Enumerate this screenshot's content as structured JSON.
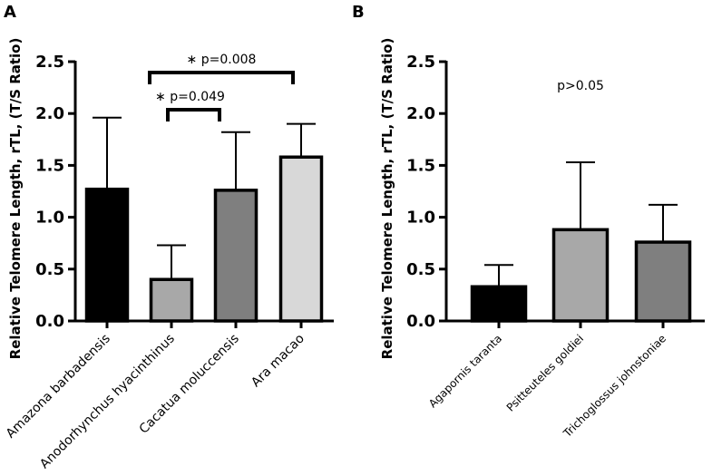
{
  "panels": {
    "a_label": "A",
    "b_label": "B"
  },
  "chart_data": [
    {
      "type": "bar",
      "panel": "A",
      "title": "",
      "xlabel": "",
      "ylabel": "Relative Telomere Length, rTL, (T/S Ratio)",
      "ylim": [
        0,
        2.5
      ],
      "yticks": [
        "0.0",
        "0.5",
        "1.0",
        "1.5",
        "2.0",
        "2.5"
      ],
      "categories": [
        "Amazona barbadensis",
        "Anodorhynchus hyacinthinus",
        "Cacatua moluccensis",
        "Ara macao"
      ],
      "values": [
        1.27,
        0.4,
        1.26,
        1.58
      ],
      "errors": [
        0.69,
        0.33,
        0.56,
        0.32
      ],
      "colors": [
        "#000000",
        "#a8a8a8",
        "#7f7f7f",
        "#d8d8d8"
      ],
      "annotations": [
        {
          "text": "∗ p=0.008",
          "from": 1,
          "to": 3
        },
        {
          "text": "∗ p=0.049",
          "from": 1,
          "to": 2
        }
      ]
    },
    {
      "type": "bar",
      "panel": "B",
      "title": "",
      "xlabel": "",
      "ylabel": "Relative Telomere Length, rTL, (T/S Ratio)",
      "ylim": [
        0,
        2.5
      ],
      "yticks": [
        "0.0",
        "0.5",
        "1.0",
        "1.5",
        "2.0",
        "2.5"
      ],
      "categories": [
        "Agapornis taranta",
        "Psitteuteles goldiei",
        "Trichoglossus johnstoniae"
      ],
      "values": [
        0.33,
        0.88,
        0.76
      ],
      "errors": [
        0.21,
        0.65,
        0.36
      ],
      "colors": [
        "#000000",
        "#a8a8a8",
        "#7f7f7f"
      ],
      "annotations": [
        {
          "text": "p>0.05"
        }
      ]
    }
  ]
}
